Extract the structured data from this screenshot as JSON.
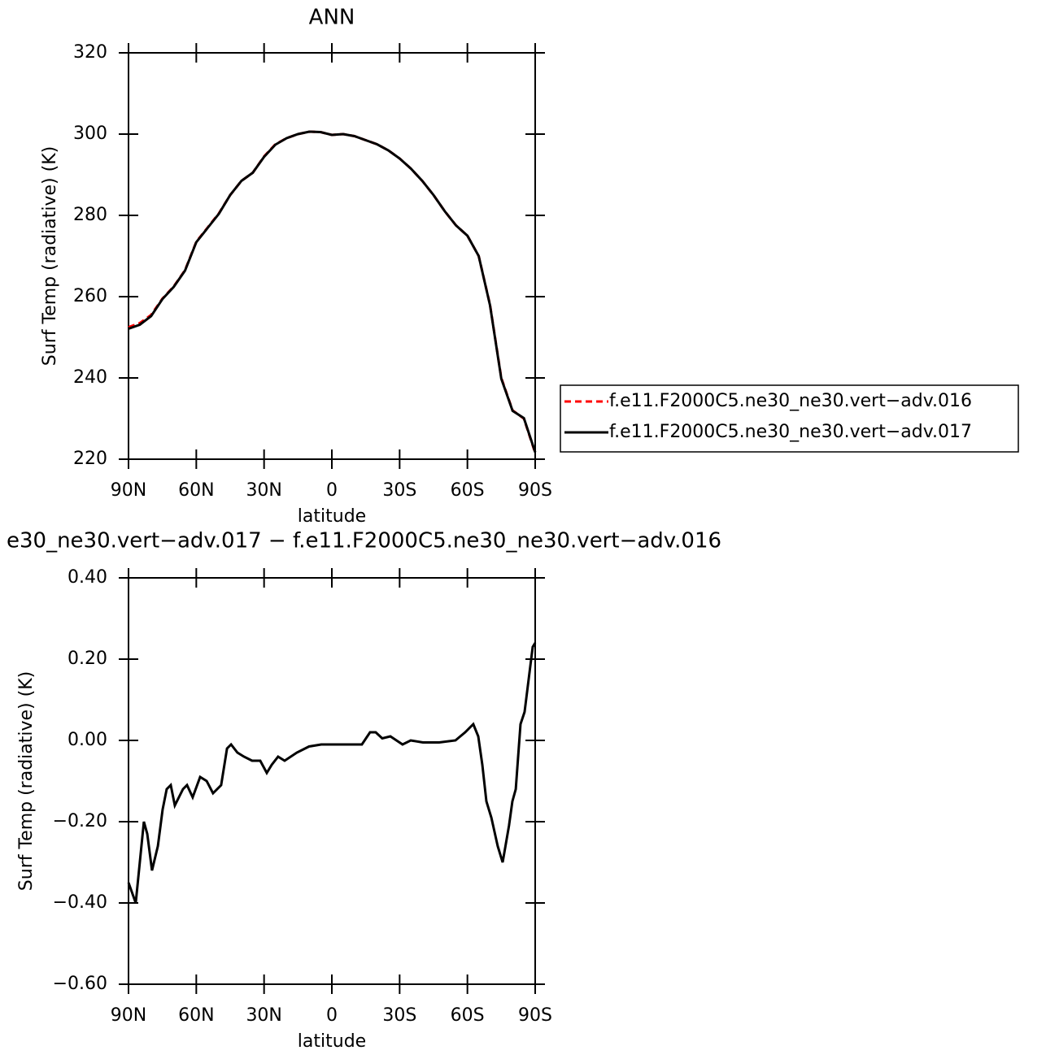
{
  "chart_data": [
    {
      "type": "line",
      "title": "ANN",
      "ylabel": "Surf Temp (radiative) (K)",
      "xlabel": "latitude",
      "x": [
        90,
        85,
        80,
        75,
        70,
        65,
        60,
        55,
        50,
        45,
        40,
        35,
        30,
        25,
        20,
        15,
        10,
        5,
        0,
        -5,
        -10,
        -15,
        -20,
        -25,
        -30,
        -35,
        -40,
        -45,
        -50,
        -55,
        -60,
        -65,
        -70,
        -75,
        -80,
        -85,
        -90
      ],
      "series": [
        {
          "name": "f.e11.F2000C5.ne30_ne30.vert−adv.016",
          "color": "#ff0000",
          "dashed": true,
          "values": [
            252.5,
            253.5,
            255.5,
            259.5,
            262.5,
            266.5,
            273.5,
            277,
            280.5,
            285,
            288.5,
            290.5,
            294.5,
            297.5,
            299,
            300,
            300.6,
            300.5,
            299.8,
            300,
            299.5,
            298.5,
            297.5,
            296,
            294,
            291.5,
            288.5,
            285,
            281,
            277.5,
            275,
            270,
            258,
            240,
            232,
            230,
            221.5
          ]
        },
        {
          "name": "f.e11.F2000C5.ne30_ne30.vert−adv.017",
          "color": "#000000",
          "dashed": false,
          "values": [
            252.1,
            253.1,
            255.2,
            259.4,
            262.4,
            266.4,
            273.4,
            276.9,
            280.4,
            285,
            288.5,
            290.5,
            294.4,
            297.4,
            299,
            300,
            300.6,
            300.5,
            299.8,
            300,
            299.5,
            298.5,
            297.5,
            296,
            294,
            291.5,
            288.5,
            285,
            281,
            277.5,
            275,
            270,
            257.9,
            239.8,
            231.9,
            230.1,
            221.7
          ]
        }
      ],
      "xlim": [
        90,
        -90
      ],
      "xticks": [
        {
          "value": 90,
          "label": "90N"
        },
        {
          "value": 60,
          "label": "60N"
        },
        {
          "value": 30,
          "label": "30N"
        },
        0,
        {
          "value": -30,
          "label": "30S"
        },
        {
          "value": -60,
          "label": "60S"
        },
        {
          "value": -90,
          "label": "90S"
        }
      ],
      "ylim": [
        220,
        320
      ],
      "yticks": [
        220,
        240,
        260,
        280,
        300,
        320
      ],
      "legend": "right"
    },
    {
      "type": "line",
      "title": "e30_ne30.vert−adv.017 − f.e11.F2000C5.ne30_ne30.vert−adv.016",
      "ylabel": "Surf Temp (radiative) (K)",
      "xlabel": "latitude",
      "x": [
        90,
        86.8,
        85,
        83.2,
        81.7,
        79.6,
        77,
        74.9,
        73.1,
        71.3,
        69.5,
        67.7,
        65.9,
        64.1,
        61.6,
        58.3,
        55.4,
        52.6,
        49,
        46.4,
        44.6,
        41.8,
        38.9,
        35.3,
        31.7,
        28.8,
        26.6,
        23.8,
        20.9,
        15.5,
        10.1,
        4.7,
        -0.7,
        -7.9,
        -13.3,
        -16.9,
        -19.4,
        -22.3,
        -25.9,
        -31.3,
        -34.9,
        -40.3,
        -47.5,
        -54.7,
        -59,
        -62.6,
        -64.8,
        -66.6,
        -68.4,
        -70.6,
        -73.4,
        -75.6,
        -78.4,
        -79.9,
        -81.4,
        -83.5,
        -85.3,
        -87.1,
        -88.9,
        -90
      ],
      "series": [
        {
          "color": "#000000",
          "dashed": false,
          "values": [
            -0.35,
            -0.4,
            -0.3,
            -0.2,
            -0.23,
            -0.32,
            -0.26,
            -0.17,
            -0.12,
            -0.11,
            -0.16,
            -0.14,
            -0.12,
            -0.11,
            -0.14,
            -0.09,
            -0.1,
            -0.13,
            -0.11,
            -0.02,
            -0.01,
            -0.03,
            -0.04,
            -0.05,
            -0.05,
            -0.08,
            -0.06,
            -0.04,
            -0.05,
            -0.03,
            -0.015,
            -0.01,
            -0.01,
            -0.01,
            -0.01,
            0.02,
            0.02,
            0.005,
            0.01,
            -0.01,
            0,
            -0.005,
            -0.005,
            0,
            0.02,
            0.04,
            0.01,
            -0.06,
            -0.15,
            -0.19,
            -0.26,
            -0.3,
            -0.21,
            -0.15,
            -0.12,
            0.04,
            0.07,
            0.15,
            0.23,
            0.24
          ]
        }
      ],
      "xlim": [
        90,
        -90
      ],
      "xticks": [
        {
          "value": 90,
          "label": "90N"
        },
        {
          "value": 60,
          "label": "60N"
        },
        {
          "value": 30,
          "label": "30N"
        },
        0,
        {
          "value": -30,
          "label": "30S"
        },
        {
          "value": -60,
          "label": "60S"
        },
        {
          "value": -90,
          "label": "90S"
        }
      ],
      "ylim": [
        -0.6,
        0.4
      ],
      "yticks": [
        {
          "value": -0.6,
          "label": "−0.60"
        },
        {
          "value": -0.4,
          "label": "−0.40"
        },
        {
          "value": -0.2,
          "label": "−0.20"
        },
        {
          "value": 0,
          "label": "0.00"
        },
        {
          "value": 0.2,
          "label": "0.20"
        },
        {
          "value": 0.4,
          "label": "0.40"
        }
      ]
    }
  ]
}
